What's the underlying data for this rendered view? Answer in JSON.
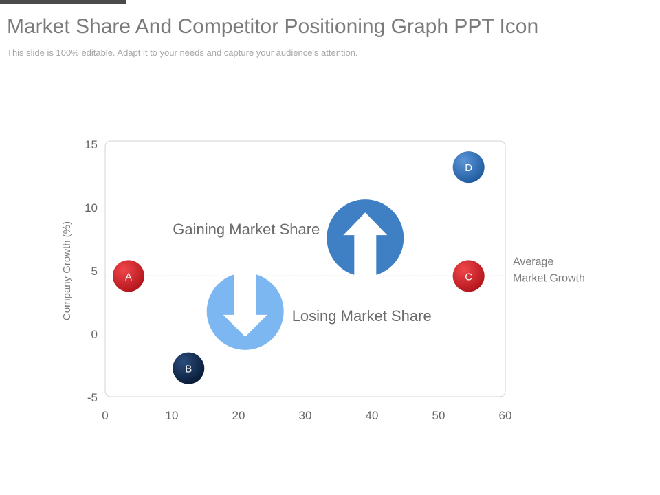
{
  "slide": {
    "title": "Market Share And Competitor Positioning Graph PPT Icon",
    "subtitle": "This slide is 100% editable. Adapt it to your needs and capture your audience's attention."
  },
  "chart_data": {
    "type": "scatter",
    "title": "",
    "xlabel": "",
    "ylabel": "Company Growth (%)",
    "xlim": [
      0,
      60
    ],
    "ylim": [
      -5,
      15
    ],
    "xticks": [
      "0",
      "10",
      "20",
      "30",
      "40",
      "50",
      "60"
    ],
    "yticks": [
      "15",
      "10",
      "5",
      "0",
      "-5"
    ],
    "grid": false,
    "reference_line": {
      "y": 4.6,
      "label_lines": [
        "Average",
        "Market Growth"
      ]
    },
    "points": [
      {
        "label": "A",
        "x": 3.5,
        "y": 4.6,
        "color": "#d9252b"
      },
      {
        "label": "B",
        "x": 12.5,
        "y": -2.7,
        "color": "#0f2a4f"
      },
      {
        "label": "C",
        "x": 54.5,
        "y": 4.6,
        "color": "#d9252b"
      },
      {
        "label": "D",
        "x": 54.5,
        "y": 13.2,
        "color": "#2e6db4"
      }
    ],
    "annotations": [
      {
        "label": "Gaining Market Share",
        "direction": "up",
        "x": 39,
        "y": 7.6,
        "color": "#3f7fc4"
      },
      {
        "label": "Losing Market Share",
        "direction": "down",
        "x": 21,
        "y": 1.8,
        "color": "#7cb7f2"
      }
    ]
  }
}
